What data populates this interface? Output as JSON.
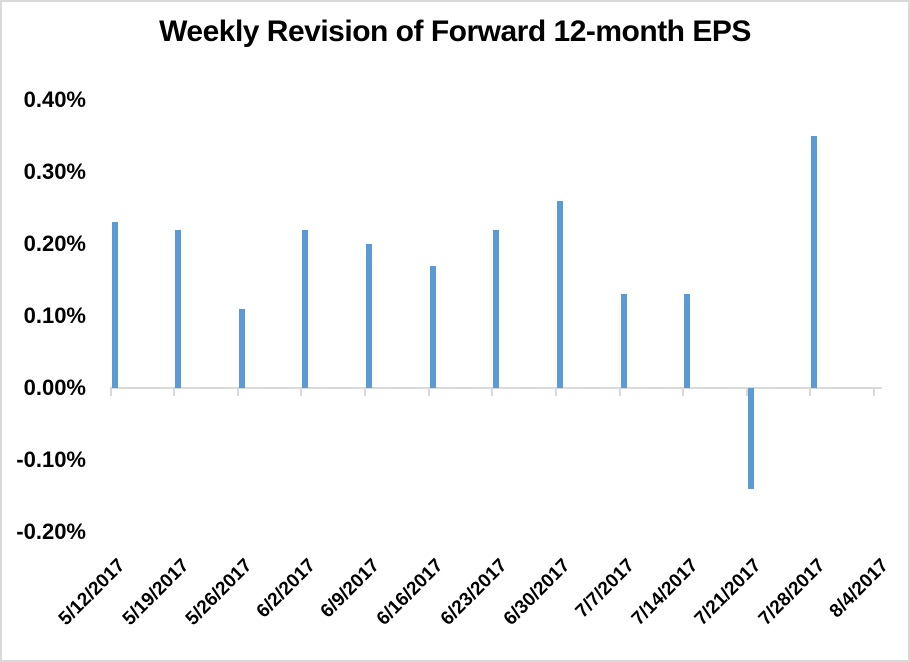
{
  "chart_data": {
    "type": "bar",
    "title": "Weekly Revision of Forward 12-month EPS",
    "categories": [
      "5/12/2017",
      "5/19/2017",
      "5/26/2017",
      "6/2/2017",
      "6/9/2017",
      "6/16/2017",
      "6/23/2017",
      "6/30/2017",
      "7/7/2017",
      "7/14/2017",
      "7/21/2017",
      "7/28/2017",
      "8/4/2017"
    ],
    "values": [
      0.23,
      0.22,
      0.11,
      0.22,
      0.2,
      0.17,
      0.22,
      0.26,
      0.13,
      0.13,
      -0.14,
      0.35,
      0.0
    ],
    "unit": "%",
    "xlabel": "",
    "ylabel": "",
    "ylim": [
      -0.2,
      0.4
    ],
    "ytick_step": 0.1,
    "ytick_labels": [
      "0.40%",
      "0.30%",
      "0.20%",
      "0.10%",
      "0.00%",
      "-0.10%",
      "-0.20%"
    ],
    "grid": false,
    "legend": "none",
    "x_label_rotation_deg": 45,
    "bar_color": "#5B9BD5",
    "axis_color": "#D9D9D9",
    "text_color": "#000000",
    "background_color": "#FFFFFF"
  }
}
